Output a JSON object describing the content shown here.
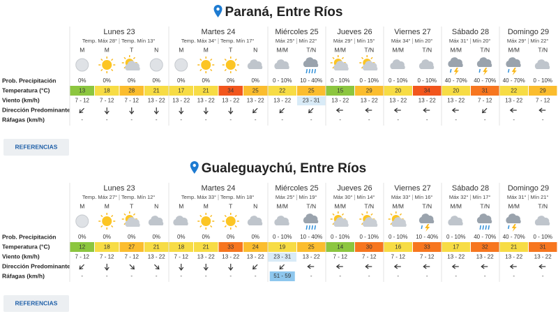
{
  "locations": [
    {
      "title": "Paraná, Entre Ríos",
      "button": "REFERENCIAS",
      "row_labels": [
        "Prob. Precipitación",
        "Temperatura (°C)",
        "Viento (km/h)",
        "Dirección Predominante",
        "Ráfagas (km/h)"
      ],
      "days": [
        {
          "name": "Lunes 23",
          "max": "Temp. Máx 28°",
          "min": "Temp. Mín 13°",
          "periods": [
            {
              "label": "M",
              "precip": "0%",
              "temp": 13,
              "wind": "7 - 12",
              "gust": "-"
            },
            {
              "label": "M",
              "precip": "0%",
              "temp": 18,
              "wind": "7 - 12",
              "gust": "-"
            },
            {
              "label": "T",
              "precip": "0%",
              "temp": 28,
              "wind": "7 - 12",
              "gust": "-"
            },
            {
              "label": "N",
              "precip": "0%",
              "temp": 21,
              "wind": "13 - 22",
              "gust": "-"
            }
          ]
        },
        {
          "name": "Martes 24",
          "max": "Temp. Máx 34°",
          "min": "Temp. Mín 17°",
          "periods": [
            {
              "label": "M",
              "precip": "0%",
              "temp": 17,
              "wind": "13 - 22",
              "gust": "-"
            },
            {
              "label": "M",
              "precip": "0%",
              "temp": 21,
              "wind": "13 - 22",
              "gust": "-"
            },
            {
              "label": "T",
              "precip": "0%",
              "temp": 34,
              "wind": "13 - 22",
              "gust": "-"
            },
            {
              "label": "N",
              "precip": "0%",
              "temp": 25,
              "wind": "13 - 22",
              "gust": "-"
            }
          ]
        },
        {
          "name": "Miércoles 25",
          "max": "Máx 25°",
          "min": "Mín 22°",
          "periods": [
            {
              "label": "M/M",
              "precip": "0 - 10%",
              "temp": 22,
              "wind": "13 - 22",
              "gust": "-"
            },
            {
              "label": "T/N",
              "precip": "10 - 40%",
              "temp": 25,
              "wind": "23 - 31",
              "gust": "-"
            }
          ]
        },
        {
          "name": "Jueves 26",
          "max": "Máx 29°",
          "min": "Mín 15°",
          "periods": [
            {
              "label": "M/M",
              "precip": "0 - 10%",
              "temp": 15,
              "wind": "13 - 22",
              "gust": "-"
            },
            {
              "label": "T/N",
              "precip": "0 - 10%",
              "temp": 29,
              "wind": "13 - 22",
              "gust": "-"
            }
          ]
        },
        {
          "name": "Viernes 27",
          "max": "Máx 34°",
          "min": "Mín 20°",
          "periods": [
            {
              "label": "M/M",
              "precip": "0 - 10%",
              "temp": 20,
              "wind": "13 - 22",
              "gust": "-"
            },
            {
              "label": "T/N",
              "precip": "0 - 10%",
              "temp": 34,
              "wind": "13 - 22",
              "gust": "-"
            }
          ]
        },
        {
          "name": "Sábado 28",
          "max": "Máx 31°",
          "min": "Mín 20°",
          "periods": [
            {
              "label": "M/M",
              "precip": "40 - 70%",
              "temp": 20,
              "wind": "13 - 22",
              "gust": "-"
            },
            {
              "label": "T/N",
              "precip": "40 - 70%",
              "temp": 31,
              "wind": "7 - 12",
              "gust": "-"
            }
          ]
        },
        {
          "name": "Domingo 29",
          "max": "Máx 29°",
          "min": "Mín 22°",
          "periods": [
            {
              "label": "M/M",
              "precip": "40 - 70%",
              "temp": 22,
              "wind": "13 - 22",
              "gust": "-"
            },
            {
              "label": "T/N",
              "precip": "0 - 10%",
              "temp": 29,
              "wind": "7 - 12",
              "gust": "-"
            }
          ]
        }
      ]
    },
    {
      "title": "Gualeguaychú, Entre Ríos",
      "button": "REFERENCIAS",
      "row_labels": [
        "Prob. Precipitación",
        "Temperatura (°C)",
        "Viento (km/h)",
        "Dirección Predominante",
        "Ráfagas (km/h)"
      ],
      "days": [
        {
          "name": "Lunes 23",
          "max": "Temp. Máx 27°",
          "min": "Temp. Mín 12°",
          "periods": [
            {
              "label": "M",
              "precip": "0%",
              "temp": 12,
              "wind": "7 - 12",
              "gust": "-"
            },
            {
              "label": "M",
              "precip": "0%",
              "temp": 18,
              "wind": "7 - 12",
              "gust": "-"
            },
            {
              "label": "T",
              "precip": "0%",
              "temp": 27,
              "wind": "7 - 12",
              "gust": "-"
            },
            {
              "label": "N",
              "precip": "0%",
              "temp": 21,
              "wind": "13 - 22",
              "gust": "-"
            }
          ]
        },
        {
          "name": "Martes 24",
          "max": "Temp. Máx 33°",
          "min": "Temp. Mín 18°",
          "periods": [
            {
              "label": "M",
              "precip": "0%",
              "temp": 18,
              "wind": "7 - 12",
              "gust": "-"
            },
            {
              "label": "M",
              "precip": "0%",
              "temp": 21,
              "wind": "13 - 22",
              "gust": "-"
            },
            {
              "label": "T",
              "precip": "0%",
              "temp": 33,
              "wind": "13 - 22",
              "gust": "-"
            },
            {
              "label": "N",
              "precip": "0%",
              "temp": 24,
              "wind": "13 - 22",
              "gust": "-"
            }
          ]
        },
        {
          "name": "Miércoles 25",
          "max": "Máx 25°",
          "min": "Mín 19°",
          "periods": [
            {
              "label": "M/M",
              "precip": "0 - 10%",
              "temp": 19,
              "wind": "23 - 31",
              "gust": "51 - 59"
            },
            {
              "label": "T/N",
              "precip": "10 - 40%",
              "temp": 25,
              "wind": "13 - 22",
              "gust": "-"
            }
          ]
        },
        {
          "name": "Jueves 26",
          "max": "Máx 30°",
          "min": "Mín 14°",
          "periods": [
            {
              "label": "M/M",
              "precip": "0 - 10%",
              "temp": 14,
              "wind": "7 - 12",
              "gust": "-"
            },
            {
              "label": "T/N",
              "precip": "0 - 10%",
              "temp": 30,
              "wind": "7 - 12",
              "gust": "-"
            }
          ]
        },
        {
          "name": "Viernes 27",
          "max": "Máx 33°",
          "min": "Mín 16°",
          "periods": [
            {
              "label": "M/M",
              "precip": "0 - 10%",
              "temp": 16,
              "wind": "7 - 12",
              "gust": "-"
            },
            {
              "label": "T/N",
              "precip": "10 - 40%",
              "temp": 33,
              "wind": "7 - 12",
              "gust": "-"
            }
          ]
        },
        {
          "name": "Sábado 28",
          "max": "Máx 32°",
          "min": "Mín 17°",
          "periods": [
            {
              "label": "M/M",
              "precip": "0 - 10%",
              "temp": 17,
              "wind": "13 - 22",
              "gust": "-"
            },
            {
              "label": "T/N",
              "precip": "40 - 70%",
              "temp": 32,
              "wind": "13 - 22",
              "gust": "-"
            }
          ]
        },
        {
          "name": "Domingo 29",
          "max": "Máx 31°",
          "min": "Mín 21°",
          "periods": [
            {
              "label": "M/M",
              "precip": "40 - 70%",
              "temp": 21,
              "wind": "13 - 22",
              "gust": "-"
            },
            {
              "label": "T/N",
              "precip": "0 - 10%",
              "temp": 31,
              "wind": "13 - 22",
              "gust": "-"
            }
          ]
        }
      ]
    }
  ]
}
